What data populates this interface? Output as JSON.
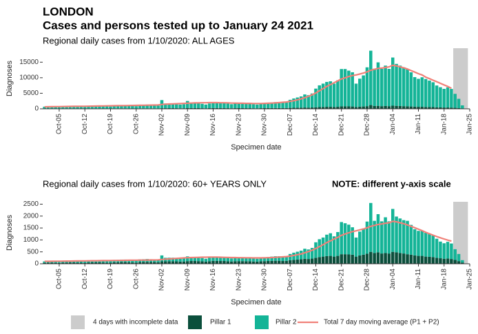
{
  "header": {
    "title": "LONDON",
    "subtitle": "Cases and persons tested up to January 24 2021"
  },
  "chart_data": [
    {
      "type": "bar",
      "title": "Regional daily cases from 1/10/2020: ALL AGES",
      "xlabel": "Specimen date",
      "ylabel": "Diagnoses",
      "x": [
        0,
        1,
        2,
        3,
        4,
        5,
        6,
        7,
        8,
        9,
        10,
        11,
        12,
        13,
        14,
        15,
        16,
        17,
        18,
        19,
        20,
        21,
        22,
        23,
        24,
        25,
        26,
        27,
        28,
        29,
        30,
        31,
        32,
        33,
        34,
        35,
        36,
        37,
        38,
        39,
        40,
        41,
        42,
        43,
        44,
        45,
        46,
        47,
        48,
        49,
        50,
        51,
        52,
        53,
        54,
        55,
        56,
        57,
        58,
        59,
        60,
        61,
        62,
        63,
        64,
        65,
        66,
        67,
        68,
        69,
        70,
        71,
        72,
        73,
        74,
        75,
        76,
        77,
        78,
        79,
        80,
        81,
        82,
        83,
        84,
        85,
        86,
        87,
        88,
        89,
        90,
        91,
        92,
        93,
        94,
        95,
        96,
        97,
        98,
        99,
        100,
        101,
        102,
        103,
        104,
        105,
        106,
        107,
        108,
        109,
        110,
        111,
        112,
        113,
        114
      ],
      "xlim": [
        -0.5,
        116
      ],
      "xticks": [
        {
          "value": 4,
          "label": "Oct-05"
        },
        {
          "value": 11,
          "label": "Oct-12"
        },
        {
          "value": 18,
          "label": "Oct-19"
        },
        {
          "value": 25,
          "label": "Oct-26"
        },
        {
          "value": 32,
          "label": "Nov-02"
        },
        {
          "value": 39,
          "label": "Nov-09"
        },
        {
          "value": 46,
          "label": "Nov-16"
        },
        {
          "value": 53,
          "label": "Nov-23"
        },
        {
          "value": 60,
          "label": "Nov-30"
        },
        {
          "value": 67,
          "label": "Dec-07"
        },
        {
          "value": 74,
          "label": "Dec-14"
        },
        {
          "value": 81,
          "label": "Dec-21"
        },
        {
          "value": 88,
          "label": "Dec-28"
        },
        {
          "value": 95,
          "label": "Jan-04"
        },
        {
          "value": 102,
          "label": "Jan-11"
        },
        {
          "value": 109,
          "label": "Jan-18"
        },
        {
          "value": 116,
          "label": "Jan-25"
        }
      ],
      "ylim": [
        0,
        19500
      ],
      "yticks": [
        0,
        5000,
        10000,
        15000
      ],
      "shade": {
        "label": "4 days with incomplete data",
        "color": "#cccccc",
        "range": [
          111.5,
          115.5
        ]
      },
      "series": [
        {
          "name": "Pillar 1",
          "color": "#0b4f3c",
          "values": [
            80,
            90,
            90,
            80,
            70,
            100,
            100,
            110,
            110,
            100,
            90,
            80,
            110,
            120,
            120,
            120,
            110,
            100,
            90,
            130,
            130,
            140,
            140,
            130,
            110,
            100,
            150,
            150,
            160,
            150,
            140,
            130,
            200,
            200,
            210,
            210,
            200,
            180,
            190,
            220,
            230,
            230,
            220,
            200,
            180,
            210,
            240,
            240,
            230,
            230,
            210,
            190,
            210,
            220,
            220,
            210,
            210,
            190,
            180,
            210,
            220,
            230,
            240,
            250,
            250,
            230,
            240,
            300,
            330,
            350,
            380,
            420,
            400,
            430,
            500,
            550,
            600,
            650,
            650,
            600,
            650,
            800,
            800,
            780,
            750,
            600,
            700,
            750,
            850,
            1200,
            900,
            950,
            850,
            900,
            850,
            1000,
            950,
            900,
            850,
            800,
            750,
            700,
            650,
            650,
            600,
            580,
            550,
            500,
            450,
            420,
            430,
            400,
            320,
            220,
            100
          ]
        },
        {
          "name": "Pillar 2",
          "color": "#14b497",
          "values": [
            600,
            650,
            600,
            550,
            500,
            700,
            750,
            800,
            800,
            750,
            600,
            550,
            800,
            900,
            950,
            950,
            900,
            700,
            650,
            950,
            1000,
            1050,
            1050,
            1000,
            800,
            750,
            1100,
            1150,
            1200,
            1150,
            1100,
            900,
            2600,
            1500,
            1500,
            1500,
            1400,
            1200,
            1300,
            2300,
            1700,
            1700,
            1600,
            1400,
            1200,
            1500,
            1800,
            1800,
            1750,
            1700,
            1500,
            1300,
            1500,
            1600,
            1600,
            1500,
            1500,
            1300,
            1200,
            1500,
            1600,
            1700,
            1800,
            1900,
            1900,
            1700,
            1800,
            2600,
            3000,
            3300,
            3600,
            4200,
            4000,
            4500,
            6000,
            7000,
            7500,
            8000,
            8200,
            7500,
            8500,
            12000,
            12000,
            11500,
            11000,
            7500,
            9000,
            10000,
            12500,
            17500,
            12000,
            14000,
            12000,
            13000,
            12000,
            15500,
            13500,
            13000,
            12500,
            12000,
            11000,
            9500,
            9000,
            9500,
            9000,
            8500,
            8000,
            7000,
            6500,
            6000,
            6500,
            6000,
            4500,
            3000,
            1000
          ]
        },
        {
          "name": "Total 7 day moving average (P1 + P2)",
          "color": "#f08078",
          "type": "line",
          "values": [
            650,
            670,
            690,
            700,
            710,
            730,
            750,
            770,
            790,
            800,
            810,
            830,
            850,
            870,
            890,
            910,
            930,
            950,
            970,
            990,
            1010,
            1030,
            1050,
            1070,
            1090,
            1110,
            1130,
            1150,
            1170,
            1190,
            1210,
            1250,
            1400,
            1500,
            1550,
            1600,
            1650,
            1700,
            1750,
            1800,
            1850,
            1900,
            1900,
            1950,
            1950,
            2000,
            2000,
            2000,
            1950,
            1950,
            1900,
            1850,
            1850,
            1800,
            1800,
            1750,
            1750,
            1700,
            1700,
            1700,
            1750,
            1800,
            1850,
            1900,
            2000,
            2100,
            2200,
            2400,
            2600,
            2900,
            3200,
            3600,
            4000,
            4500,
            5100,
            5800,
            6500,
            7200,
            7800,
            8400,
            9000,
            9600,
            10000,
            10400,
            10700,
            10900,
            11200,
            11500,
            11900,
            12400,
            12700,
            13000,
            13100,
            13300,
            13500,
            14000,
            13800,
            13500,
            13200,
            12800,
            12300,
            11800,
            11300,
            10900,
            10200,
            9700,
            9200,
            8700,
            8200,
            7700,
            7200,
            6600,
            null,
            null,
            null
          ]
        }
      ]
    },
    {
      "type": "bar",
      "title": "Regional daily cases from 1/10/2020: 60+ YEARS ONLY",
      "note": "NOTE: different y-axis scale",
      "xlabel": "Specimen date",
      "ylabel": "Diagnoses",
      "x": [
        0,
        1,
        2,
        3,
        4,
        5,
        6,
        7,
        8,
        9,
        10,
        11,
        12,
        13,
        14,
        15,
        16,
        17,
        18,
        19,
        20,
        21,
        22,
        23,
        24,
        25,
        26,
        27,
        28,
        29,
        30,
        31,
        32,
        33,
        34,
        35,
        36,
        37,
        38,
        39,
        40,
        41,
        42,
        43,
        44,
        45,
        46,
        47,
        48,
        49,
        50,
        51,
        52,
        53,
        54,
        55,
        56,
        57,
        58,
        59,
        60,
        61,
        62,
        63,
        64,
        65,
        66,
        67,
        68,
        69,
        70,
        71,
        72,
        73,
        74,
        75,
        76,
        77,
        78,
        79,
        80,
        81,
        82,
        83,
        84,
        85,
        86,
        87,
        88,
        89,
        90,
        91,
        92,
        93,
        94,
        95,
        96,
        97,
        98,
        99,
        100,
        101,
        102,
        103,
        104,
        105,
        106,
        107,
        108,
        109,
        110,
        111,
        112,
        113,
        114
      ],
      "xlim": [
        -0.5,
        116
      ],
      "xticks": [
        {
          "value": 4,
          "label": "Oct-05"
        },
        {
          "value": 11,
          "label": "Oct-12"
        },
        {
          "value": 18,
          "label": "Oct-19"
        },
        {
          "value": 25,
          "label": "Oct-26"
        },
        {
          "value": 32,
          "label": "Nov-02"
        },
        {
          "value": 39,
          "label": "Nov-09"
        },
        {
          "value": 46,
          "label": "Nov-16"
        },
        {
          "value": 53,
          "label": "Nov-23"
        },
        {
          "value": 60,
          "label": "Nov-30"
        },
        {
          "value": 67,
          "label": "Dec-07"
        },
        {
          "value": 74,
          "label": "Dec-14"
        },
        {
          "value": 81,
          "label": "Dec-21"
        },
        {
          "value": 88,
          "label": "Dec-28"
        },
        {
          "value": 95,
          "label": "Jan-04"
        },
        {
          "value": 102,
          "label": "Jan-11"
        },
        {
          "value": 109,
          "label": "Jan-18"
        },
        {
          "value": 116,
          "label": "Jan-25"
        }
      ],
      "ylim": [
        0,
        2600
      ],
      "yticks": [
        0,
        500,
        1000,
        1500,
        2000,
        2500
      ],
      "shade": {
        "color": "#cccccc",
        "range": [
          111.5,
          115.5
        ]
      },
      "series": [
        {
          "color": "#0b4f3c",
          "values": [
            40,
            45,
            45,
            40,
            35,
            50,
            50,
            55,
            55,
            50,
            45,
            40,
            55,
            60,
            60,
            60,
            55,
            50,
            45,
            65,
            65,
            70,
            70,
            65,
            55,
            50,
            75,
            75,
            80,
            75,
            70,
            65,
            100,
            100,
            105,
            105,
            100,
            90,
            95,
            110,
            115,
            115,
            110,
            100,
            90,
            105,
            120,
            120,
            115,
            115,
            105,
            95,
            105,
            110,
            110,
            105,
            105,
            95,
            90,
            105,
            110,
            115,
            120,
            125,
            125,
            115,
            120,
            150,
            165,
            175,
            190,
            210,
            200,
            215,
            250,
            280,
            300,
            320,
            330,
            300,
            330,
            400,
            400,
            390,
            380,
            300,
            350,
            380,
            420,
            500,
            450,
            480,
            430,
            450,
            430,
            500,
            480,
            450,
            430,
            400,
            380,
            350,
            330,
            330,
            300,
            290,
            280,
            250,
            230,
            210,
            220,
            200,
            160,
            110,
            50
          ]
        },
        {
          "color": "#14b497",
          "values": [
            60,
            65,
            60,
            55,
            50,
            70,
            75,
            80,
            80,
            75,
            60,
            55,
            80,
            90,
            95,
            95,
            90,
            70,
            65,
            95,
            100,
            105,
            105,
            100,
            80,
            75,
            110,
            115,
            120,
            115,
            110,
            90,
            250,
            150,
            150,
            150,
            140,
            120,
            130,
            200,
            170,
            170,
            160,
            140,
            120,
            150,
            180,
            180,
            175,
            170,
            150,
            130,
            150,
            160,
            160,
            150,
            150,
            130,
            120,
            150,
            160,
            170,
            180,
            190,
            190,
            170,
            180,
            260,
            300,
            330,
            360,
            420,
            400,
            450,
            650,
            750,
            800,
            900,
            950,
            850,
            1000,
            1350,
            1300,
            1250,
            1150,
            800,
            1000,
            1100,
            1350,
            2050,
            1350,
            1600,
            1350,
            1500,
            1350,
            1800,
            1500,
            1450,
            1400,
            1400,
            1250,
            1100,
            1050,
            1050,
            1000,
            950,
            900,
            800,
            700,
            650,
            700,
            650,
            450,
            300,
            100
          ]
        },
        {
          "color": "#f08078",
          "type": "line",
          "values": [
            100,
            102,
            104,
            106,
            108,
            110,
            112,
            114,
            116,
            118,
            120,
            122,
            124,
            126,
            128,
            130,
            132,
            134,
            136,
            138,
            140,
            142,
            144,
            146,
            148,
            150,
            152,
            154,
            156,
            158,
            160,
            165,
            180,
            195,
            205,
            215,
            225,
            235,
            245,
            255,
            260,
            265,
            270,
            275,
            275,
            280,
            280,
            280,
            275,
            270,
            265,
            260,
            260,
            255,
            255,
            250,
            250,
            245,
            245,
            245,
            250,
            255,
            260,
            270,
            280,
            290,
            300,
            320,
            350,
            380,
            410,
            460,
            510,
            570,
            640,
            720,
            800,
            890,
            960,
            1040,
            1110,
            1190,
            1250,
            1300,
            1350,
            1380,
            1420,
            1460,
            1510,
            1570,
            1610,
            1650,
            1670,
            1700,
            1720,
            1780,
            1760,
            1720,
            1680,
            1630,
            1570,
            1510,
            1450,
            1390,
            1320,
            1260,
            1200,
            1140,
            1090,
            1040,
            990,
            950,
            null,
            null,
            null
          ]
        }
      ]
    }
  ]
}
